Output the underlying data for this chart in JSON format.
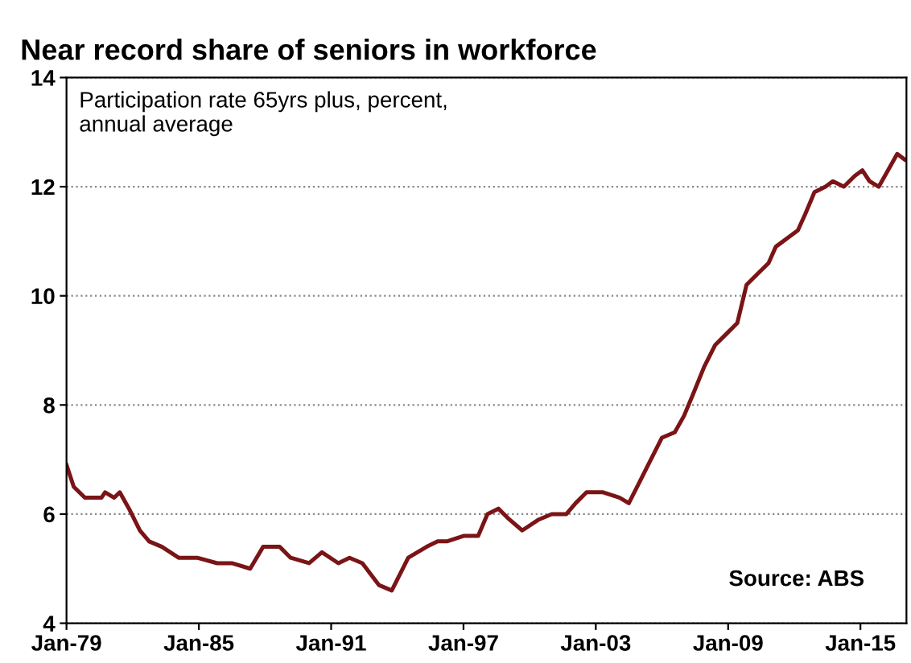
{
  "chart_data": {
    "type": "line",
    "title": "Near record share of seniors in workforce",
    "annotations": [
      "Participation rate 65yrs plus, percent,\nannual average",
      "Source: ABS"
    ],
    "x": [
      "1979-01",
      "1979-05",
      "1979-11",
      "1980-08",
      "1980-10",
      "1981-03",
      "1981-06",
      "1981-11",
      "1982-05",
      "1982-10",
      "1983-05",
      "1984-02",
      "1984-12",
      "1985-11",
      "1986-07",
      "1987-05",
      "1987-12",
      "1988-09",
      "1989-03",
      "1990-01",
      "1990-08",
      "1991-05",
      "1991-11",
      "1992-06",
      "1993-03",
      "1993-10",
      "1994-07",
      "1995-05",
      "1995-11",
      "1996-04",
      "1997-01",
      "1997-09",
      "1998-02",
      "1998-08",
      "1999-02",
      "1999-09",
      "2000-06",
      "2001-01",
      "2001-09",
      "2002-02",
      "2002-08",
      "2003-05",
      "2004-02",
      "2004-07",
      "2005-01",
      "2005-07",
      "2006-01",
      "2006-08",
      "2007-01",
      "2007-06",
      "2007-12",
      "2008-06",
      "2008-12",
      "2009-06",
      "2009-11",
      "2010-05",
      "2010-11",
      "2011-03",
      "2011-11",
      "2012-03",
      "2012-07",
      "2012-12",
      "2013-06",
      "2013-10",
      "2014-04",
      "2014-10",
      "2015-02",
      "2015-06",
      "2015-11",
      "2016-04",
      "2016-09",
      "2017-01"
    ],
    "series": [
      {
        "color": "#7b1416",
        "values": [
          6.9,
          6.5,
          6.3,
          6.3,
          6.4,
          6.3,
          6.4,
          6.1,
          5.7,
          5.5,
          5.4,
          5.2,
          5.2,
          5.1,
          5.1,
          5.0,
          5.4,
          5.4,
          5.2,
          5.1,
          5.3,
          5.1,
          5.2,
          5.1,
          4.7,
          4.6,
          5.2,
          5.4,
          5.5,
          5.5,
          5.6,
          5.6,
          6.0,
          6.1,
          5.9,
          5.7,
          5.9,
          6.0,
          6.0,
          6.2,
          6.4,
          6.4,
          6.3,
          6.2,
          6.6,
          7.0,
          7.4,
          7.5,
          7.8,
          8.2,
          8.7,
          9.1,
          9.3,
          9.5,
          10.2,
          10.4,
          10.6,
          10.9,
          11.1,
          11.2,
          11.5,
          11.9,
          12.0,
          12.1,
          12.0,
          12.2,
          12.3,
          12.1,
          12.0,
          12.3,
          12.6,
          12.5
        ]
      }
    ],
    "xlim": [
      "1979-01",
      "2017-02"
    ],
    "xticks": [
      {
        "value": "1979-01",
        "label": "Jan-79"
      },
      {
        "value": "1985-01",
        "label": "Jan-85"
      },
      {
        "value": "1991-01",
        "label": "Jan-91"
      },
      {
        "value": "1997-01",
        "label": "Jan-97"
      },
      {
        "value": "2003-01",
        "label": "Jan-03"
      },
      {
        "value": "2009-01",
        "label": "Jan-09"
      },
      {
        "value": "2015-01",
        "label": "Jan-15"
      }
    ],
    "ylim": [
      4,
      14
    ],
    "yticks": [
      4,
      6,
      8,
      10,
      12,
      14
    ],
    "grid": "y",
    "line_style": "solid",
    "marker": "none"
  }
}
